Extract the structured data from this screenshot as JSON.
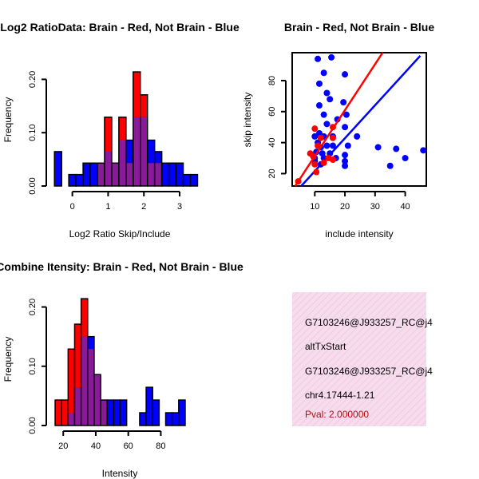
{
  "info": {
    "lines": [
      "G7103246@J933257_RC@j4",
      "altTxStart",
      "G7103246@J933257_RC@j4",
      "chr4.17444-1.21"
    ],
    "pval": "Pval: 2.000000",
    "pval_color": "#b01010",
    "fill": "#f6dcec",
    "hatch": "#eec3de"
  },
  "chart_data": [
    {
      "type": "bar",
      "name": "ratio-hist",
      "title": "Log2 RatioData: Brain - Red, Not Brain - Blue",
      "xlabel": "Log2 Ratio Skip/Include",
      "ylabel": "Frequency",
      "xlim": [
        -0.55,
        3.2
      ],
      "ylim": [
        0,
        0.25
      ],
      "xticks": [
        0,
        1,
        2,
        3
      ],
      "xtick_labels": [
        "0",
        "1",
        "2",
        "3"
      ],
      "yticks": [
        0,
        0.1,
        0.2
      ],
      "ytick_labels": [
        "0.00",
        "0.10",
        "0.20"
      ],
      "bin_start": -0.5,
      "bin_width": 0.2,
      "series": [
        {
          "name": "Not Brain",
          "color": "#0000ff",
          "values": [
            0.0645,
            0,
            0.0215,
            0.0215,
            0.043,
            0.043,
            0.043,
            0.0645,
            0.043,
            0.086,
            0.086,
            0.129,
            0.129,
            0.086,
            0.0645,
            0.043,
            0.043,
            0.043,
            0.0215,
            0.0215
          ]
        },
        {
          "name": "Brain",
          "color": "#ff0000",
          "values": [
            0,
            0,
            0,
            0,
            0,
            0,
            0.043,
            0.129,
            0.043,
            0.129,
            0.043,
            0.214,
            0.171,
            0.043,
            0.043,
            0,
            0,
            0,
            0,
            0
          ]
        }
      ]
    },
    {
      "type": "scatter",
      "name": "intensity-scatter",
      "title": "Brain - Red, Not Brain - Blue",
      "xlabel": "include intensity",
      "ylabel": "skip intensity",
      "xlim": [
        2.5,
        47
      ],
      "ylim": [
        12,
        98
      ],
      "xticks": [
        10,
        20,
        30,
        40
      ],
      "xtick_labels": [
        "10",
        "20",
        "30",
        "40"
      ],
      "yticks": [
        20,
        40,
        60,
        80
      ],
      "ytick_labels": [
        "20",
        "40",
        "60",
        "80"
      ],
      "series": [
        {
          "name": "Not Brain",
          "color": "#0000ff",
          "points": [
            [
              11,
              94
            ],
            [
              15.5,
              95
            ],
            [
              13,
              85
            ],
            [
              20,
              84
            ],
            [
              11.5,
              78
            ],
            [
              14,
              72
            ],
            [
              15,
              68
            ],
            [
              19.5,
              66
            ],
            [
              11.5,
              64
            ],
            [
              13,
              58
            ],
            [
              17.5,
              55
            ],
            [
              20.5,
              58
            ],
            [
              14,
              52
            ],
            [
              20,
              50
            ],
            [
              11.5,
              46
            ],
            [
              10,
              44
            ],
            [
              13,
              44
            ],
            [
              16,
              44
            ],
            [
              24,
              44
            ],
            [
              11,
              40
            ],
            [
              12,
              37
            ],
            [
              14,
              38
            ],
            [
              16,
              38
            ],
            [
              21,
              38
            ],
            [
              10.5,
              34
            ],
            [
              12.5,
              33
            ],
            [
              15,
              33
            ],
            [
              13,
              30
            ],
            [
              17,
              30
            ],
            [
              20,
              32
            ],
            [
              10,
              28
            ],
            [
              12,
              26
            ],
            [
              20,
              25
            ],
            [
              31,
              37
            ],
            [
              37,
              36
            ],
            [
              46,
              35
            ],
            [
              20,
              28
            ],
            [
              40,
              30
            ],
            [
              35,
              25
            ],
            [
              10,
              30
            ]
          ],
          "fit": [
            [
              5.5,
              12
            ],
            [
              45,
              96
            ]
          ]
        },
        {
          "name": "Brain",
          "color": "#ff0000",
          "points": [
            [
              10,
              49
            ],
            [
              12,
              43
            ],
            [
              16,
              43
            ],
            [
              16,
              29
            ],
            [
              8.5,
              33
            ],
            [
              9.5,
              31
            ],
            [
              10,
              26
            ],
            [
              10.5,
              21
            ],
            [
              13,
              27
            ],
            [
              14.5,
              30
            ],
            [
              4.5,
              15
            ],
            [
              11,
              38
            ],
            [
              16,
              50
            ]
          ],
          "fit": [
            [
              3.5,
              12
            ],
            [
              32.5,
              98
            ]
          ]
        }
      ]
    },
    {
      "type": "bar",
      "name": "intensity-hist",
      "title": "Combine Itensity: Brain - Red, Not Brain - Blue",
      "xlabel": "Intensity",
      "ylabel": "Frequency",
      "xlim": [
        13.5,
        96
      ],
      "ylim": [
        0,
        0.225
      ],
      "xticks": [
        20,
        40,
        60,
        80
      ],
      "xtick_labels": [
        "20",
        "40",
        "60",
        "80"
      ],
      "yticks": [
        0,
        0.1,
        0.2
      ],
      "ytick_labels": [
        "0.00",
        "0.10",
        "0.20"
      ],
      "bin_start": 15,
      "bin_width": 4,
      "series": [
        {
          "name": "Not Brain",
          "color": "#0000ff",
          "values": [
            0,
            0,
            0.0215,
            0.0645,
            0.15,
            0.15,
            0.086,
            0.043,
            0.043,
            0.043,
            0.043,
            0,
            0,
            0.0215,
            0.0645,
            0.043,
            0,
            0.0215,
            0.0215,
            0.043
          ]
        },
        {
          "name": "Brain",
          "color": "#ff0000",
          "values": [
            0.043,
            0.043,
            0.129,
            0.171,
            0.214,
            0.129,
            0.086,
            0.043,
            0,
            0,
            0,
            0,
            0,
            0,
            0,
            0,
            0,
            0,
            0,
            0
          ]
        }
      ]
    }
  ]
}
